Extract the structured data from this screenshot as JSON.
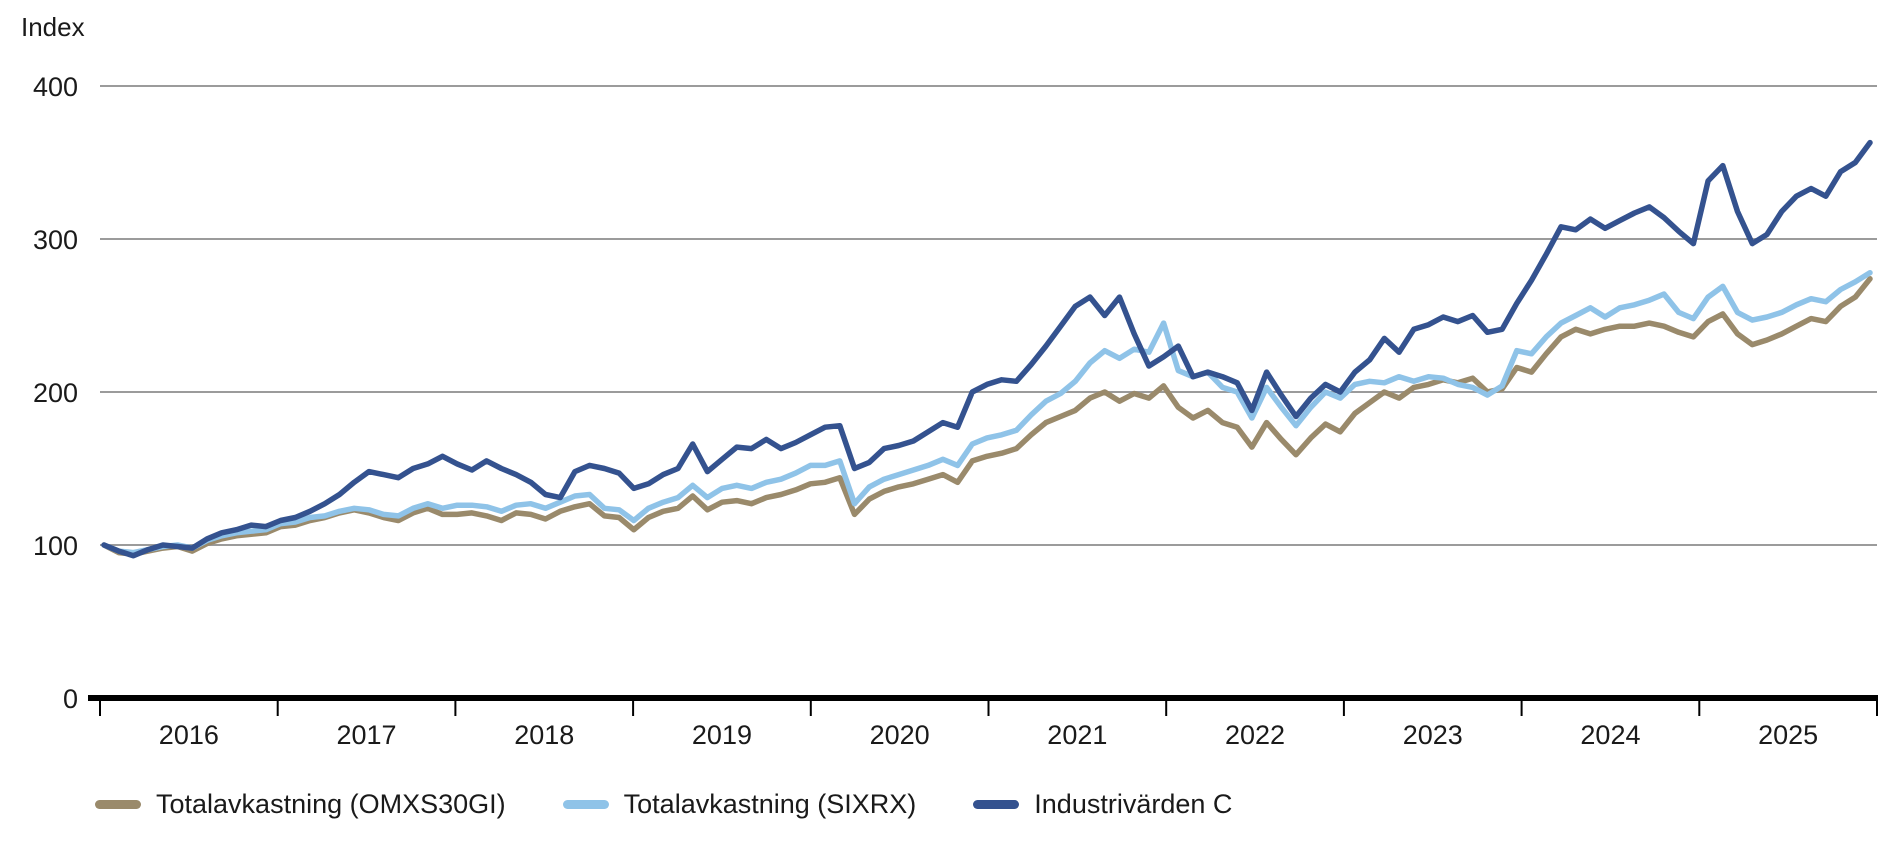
{
  "chart_data": {
    "type": "line",
    "ylabel": "Index",
    "x_unit": "monthly",
    "start": "Dec 2015",
    "end": "Dec 2025",
    "ylim": [
      0,
      400
    ],
    "y_ticks": [
      400,
      300,
      200,
      100,
      0
    ],
    "year_labels": [
      "2016",
      "2017",
      "2018",
      "2019",
      "2020",
      "2021",
      "2022",
      "2023",
      "2024",
      "2025"
    ],
    "grid": "horizontal",
    "legend_position": "bottom-left",
    "colors": {
      "grid": "#9b9b9b",
      "axis": "#000000",
      "text": "#1a1a1a"
    },
    "series": [
      {
        "name": "Totalavkastning (OMXS30GI)",
        "color": "#9a8a6b",
        "values": [
          100,
          95,
          94,
          96,
          98,
          99,
          96,
          101,
          104,
          106,
          107,
          108,
          112,
          113,
          116,
          118,
          121,
          123,
          121,
          118,
          116,
          121,
          124,
          120,
          120,
          121,
          119,
          116,
          121,
          120,
          117,
          122,
          125,
          127,
          119,
          118,
          110,
          118,
          122,
          124,
          132,
          123,
          128,
          129,
          127,
          131,
          133,
          136,
          140,
          141,
          144,
          120,
          130,
          135,
          138,
          140,
          143,
          146,
          141,
          155,
          158,
          160,
          163,
          172,
          180,
          184,
          188,
          196,
          200,
          194,
          199,
          196,
          204,
          190,
          183,
          188,
          180,
          177,
          164,
          180,
          169,
          159,
          170,
          179,
          174,
          186,
          193,
          200,
          196,
          203,
          205,
          208,
          206,
          209,
          200,
          202,
          216,
          213,
          225,
          236,
          241,
          238,
          241,
          243,
          243,
          245,
          243,
          239,
          236,
          246,
          251,
          238,
          231,
          234,
          238,
          243,
          248,
          246,
          256,
          262,
          274
        ]
      },
      {
        "name": "Totalavkastning (SIXRX)",
        "color": "#8fc3e8",
        "values": [
          100,
          96,
          95,
          97,
          99,
          100,
          98,
          103,
          106,
          108,
          109,
          110,
          114,
          115,
          118,
          119,
          122,
          124,
          123,
          120,
          119,
          124,
          127,
          124,
          126,
          126,
          125,
          122,
          126,
          127,
          124,
          128,
          132,
          133,
          124,
          123,
          116,
          124,
          128,
          131,
          139,
          131,
          137,
          139,
          137,
          141,
          143,
          147,
          152,
          152,
          155,
          127,
          138,
          143,
          146,
          149,
          152,
          156,
          152,
          166,
          170,
          172,
          175,
          185,
          194,
          199,
          207,
          219,
          227,
          222,
          228,
          226,
          245,
          214,
          210,
          213,
          203,
          200,
          183,
          203,
          190,
          178,
          190,
          200,
          196,
          205,
          207,
          206,
          210,
          207,
          210,
          209,
          205,
          203,
          198,
          204,
          227,
          225,
          236,
          245,
          250,
          255,
          249,
          255,
          257,
          260,
          264,
          252,
          248,
          262,
          269,
          252,
          247,
          249,
          252,
          257,
          261,
          259,
          267,
          272,
          278
        ]
      },
      {
        "name": "Industrivärden C",
        "color": "#34528f",
        "values": [
          100,
          96,
          93,
          97,
          100,
          99,
          98,
          104,
          108,
          110,
          113,
          112,
          116,
          118,
          122,
          127,
          133,
          141,
          148,
          146,
          144,
          150,
          153,
          158,
          153,
          149,
          155,
          150,
          146,
          141,
          133,
          131,
          148,
          152,
          150,
          147,
          137,
          140,
          146,
          150,
          166,
          148,
          156,
          164,
          163,
          169,
          163,
          167,
          172,
          177,
          178,
          150,
          154,
          163,
          165,
          168,
          174,
          180,
          177,
          200,
          205,
          208,
          207,
          218,
          230,
          243,
          256,
          262,
          250,
          262,
          238,
          217,
          223,
          230,
          210,
          213,
          210,
          206,
          188,
          213,
          198,
          184,
          196,
          205,
          200,
          213,
          221,
          235,
          226,
          241,
          244,
          249,
          246,
          250,
          239,
          241,
          258,
          273,
          290,
          308,
          306,
          313,
          307,
          312,
          317,
          321,
          314,
          305,
          297,
          338,
          348,
          318,
          297,
          303,
          318,
          328,
          333,
          328,
          344,
          350,
          363
        ]
      }
    ]
  }
}
